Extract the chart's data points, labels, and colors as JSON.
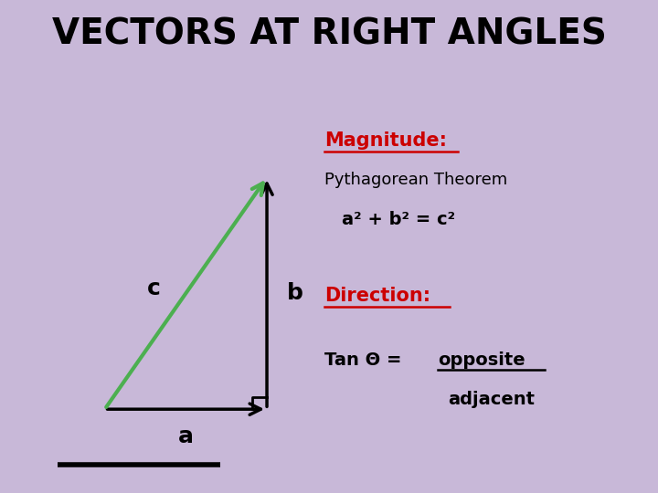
{
  "title": "VECTORS AT RIGHT ANGLES",
  "title_fontsize": 28,
  "title_color": "#000000",
  "bg_color": "#c8b8d8",
  "panel_color": "#ffffff",
  "arrow_color": "#000000",
  "diag_color": "#4caf50",
  "label_a": "a",
  "label_b": "b",
  "label_c": "c",
  "magnitude_heading": "Magnitude:",
  "magnitude_text": "Pythagorean Theorem",
  "magnitude_formula": "a² + b² = c²",
  "direction_heading": "Direction:",
  "tan_text": "Tan Θ = ",
  "tan_opposite": "opposite",
  "tan_adjacent": "adjacent",
  "red_color": "#cc0000",
  "black_color": "#000000"
}
